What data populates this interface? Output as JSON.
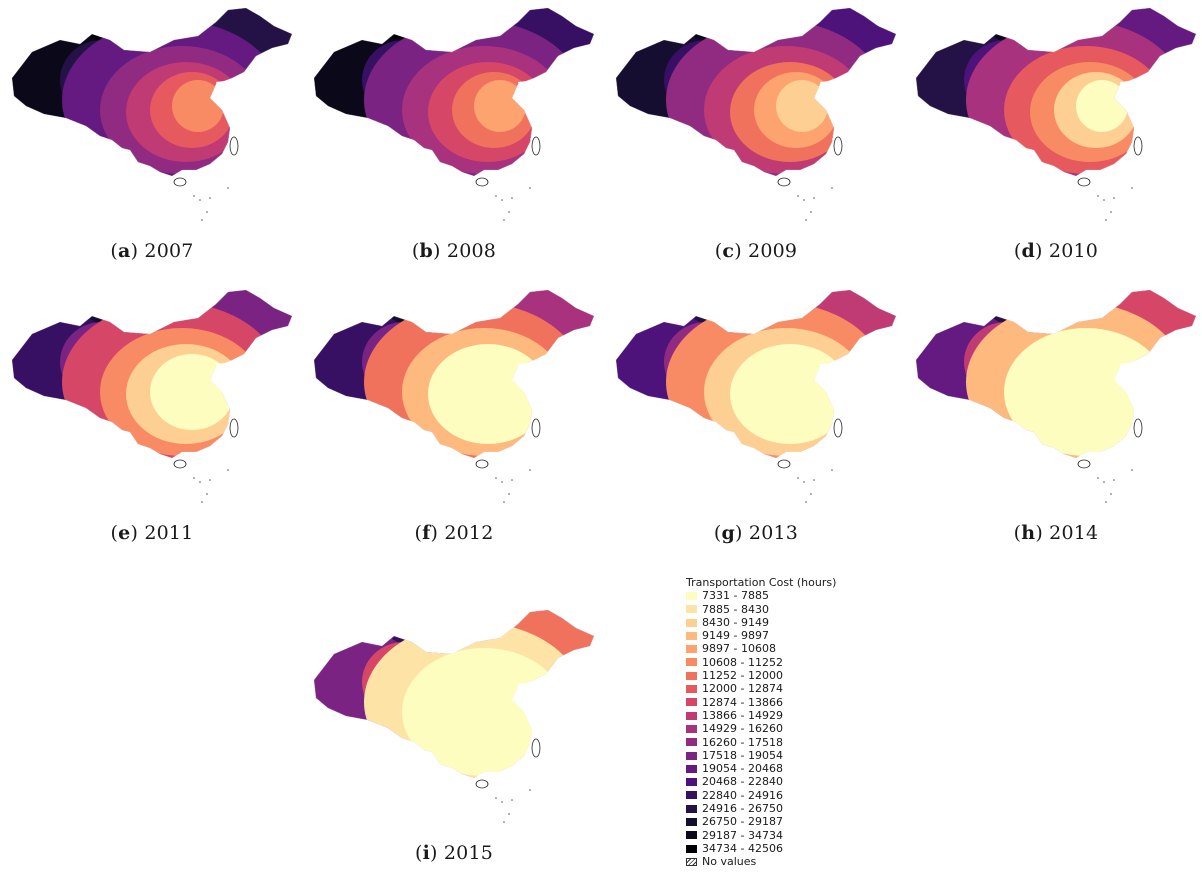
{
  "panels": [
    {
      "label": "a",
      "year": "2007",
      "level": 0.0
    },
    {
      "label": "b",
      "year": "2008",
      "level": 0.06
    },
    {
      "label": "c",
      "year": "2009",
      "level": 0.14
    },
    {
      "label": "d",
      "year": "2010",
      "level": 0.24
    },
    {
      "label": "e",
      "year": "2011",
      "level": 0.38
    },
    {
      "label": "f",
      "year": "2012",
      "level": 0.48
    },
    {
      "label": "g",
      "year": "2013",
      "level": 0.56
    },
    {
      "label": "h",
      "year": "2014",
      "level": 0.72
    },
    {
      "label": "i",
      "year": "2015",
      "level": 0.86
    }
  ],
  "legend": {
    "title": "Transportation Cost (hours)",
    "classes": [
      {
        "label": "7331 - 7885",
        "color": "#fcfdbf"
      },
      {
        "label": "7885 - 8430",
        "color": "#fde4a6"
      },
      {
        "label": "8430 - 9149",
        "color": "#fecf92"
      },
      {
        "label": "9149 - 9897",
        "color": "#feb97f"
      },
      {
        "label": "9897 - 10608",
        "color": "#fca36f"
      },
      {
        "label": "10608 - 11252",
        "color": "#f88b63"
      },
      {
        "label": "11252 - 12000",
        "color": "#f1725c"
      },
      {
        "label": "12000 - 12874",
        "color": "#e65a5f"
      },
      {
        "label": "12874 - 13866",
        "color": "#d64767"
      },
      {
        "label": "13866 - 14929",
        "color": "#c03a74"
      },
      {
        "label": "14929 - 16260",
        "color": "#a8327d"
      },
      {
        "label": "16260 - 17518",
        "color": "#912b81"
      },
      {
        "label": "17518 - 19054",
        "color": "#7a2382"
      },
      {
        "label": "19054 - 20468",
        "color": "#641a80"
      },
      {
        "label": "20468 - 22840",
        "color": "#4d137a"
      },
      {
        "label": "22840 - 24916",
        "color": "#371063"
      },
      {
        "label": "24916 - 26750",
        "color": "#241247"
      },
      {
        "label": "26750 - 29187",
        "color": "#160e31"
      },
      {
        "label": "29187 - 34734",
        "color": "#0a0819"
      },
      {
        "label": "34734 - 42506",
        "color": "#000004"
      }
    ],
    "no_values_label": "No values"
  }
}
